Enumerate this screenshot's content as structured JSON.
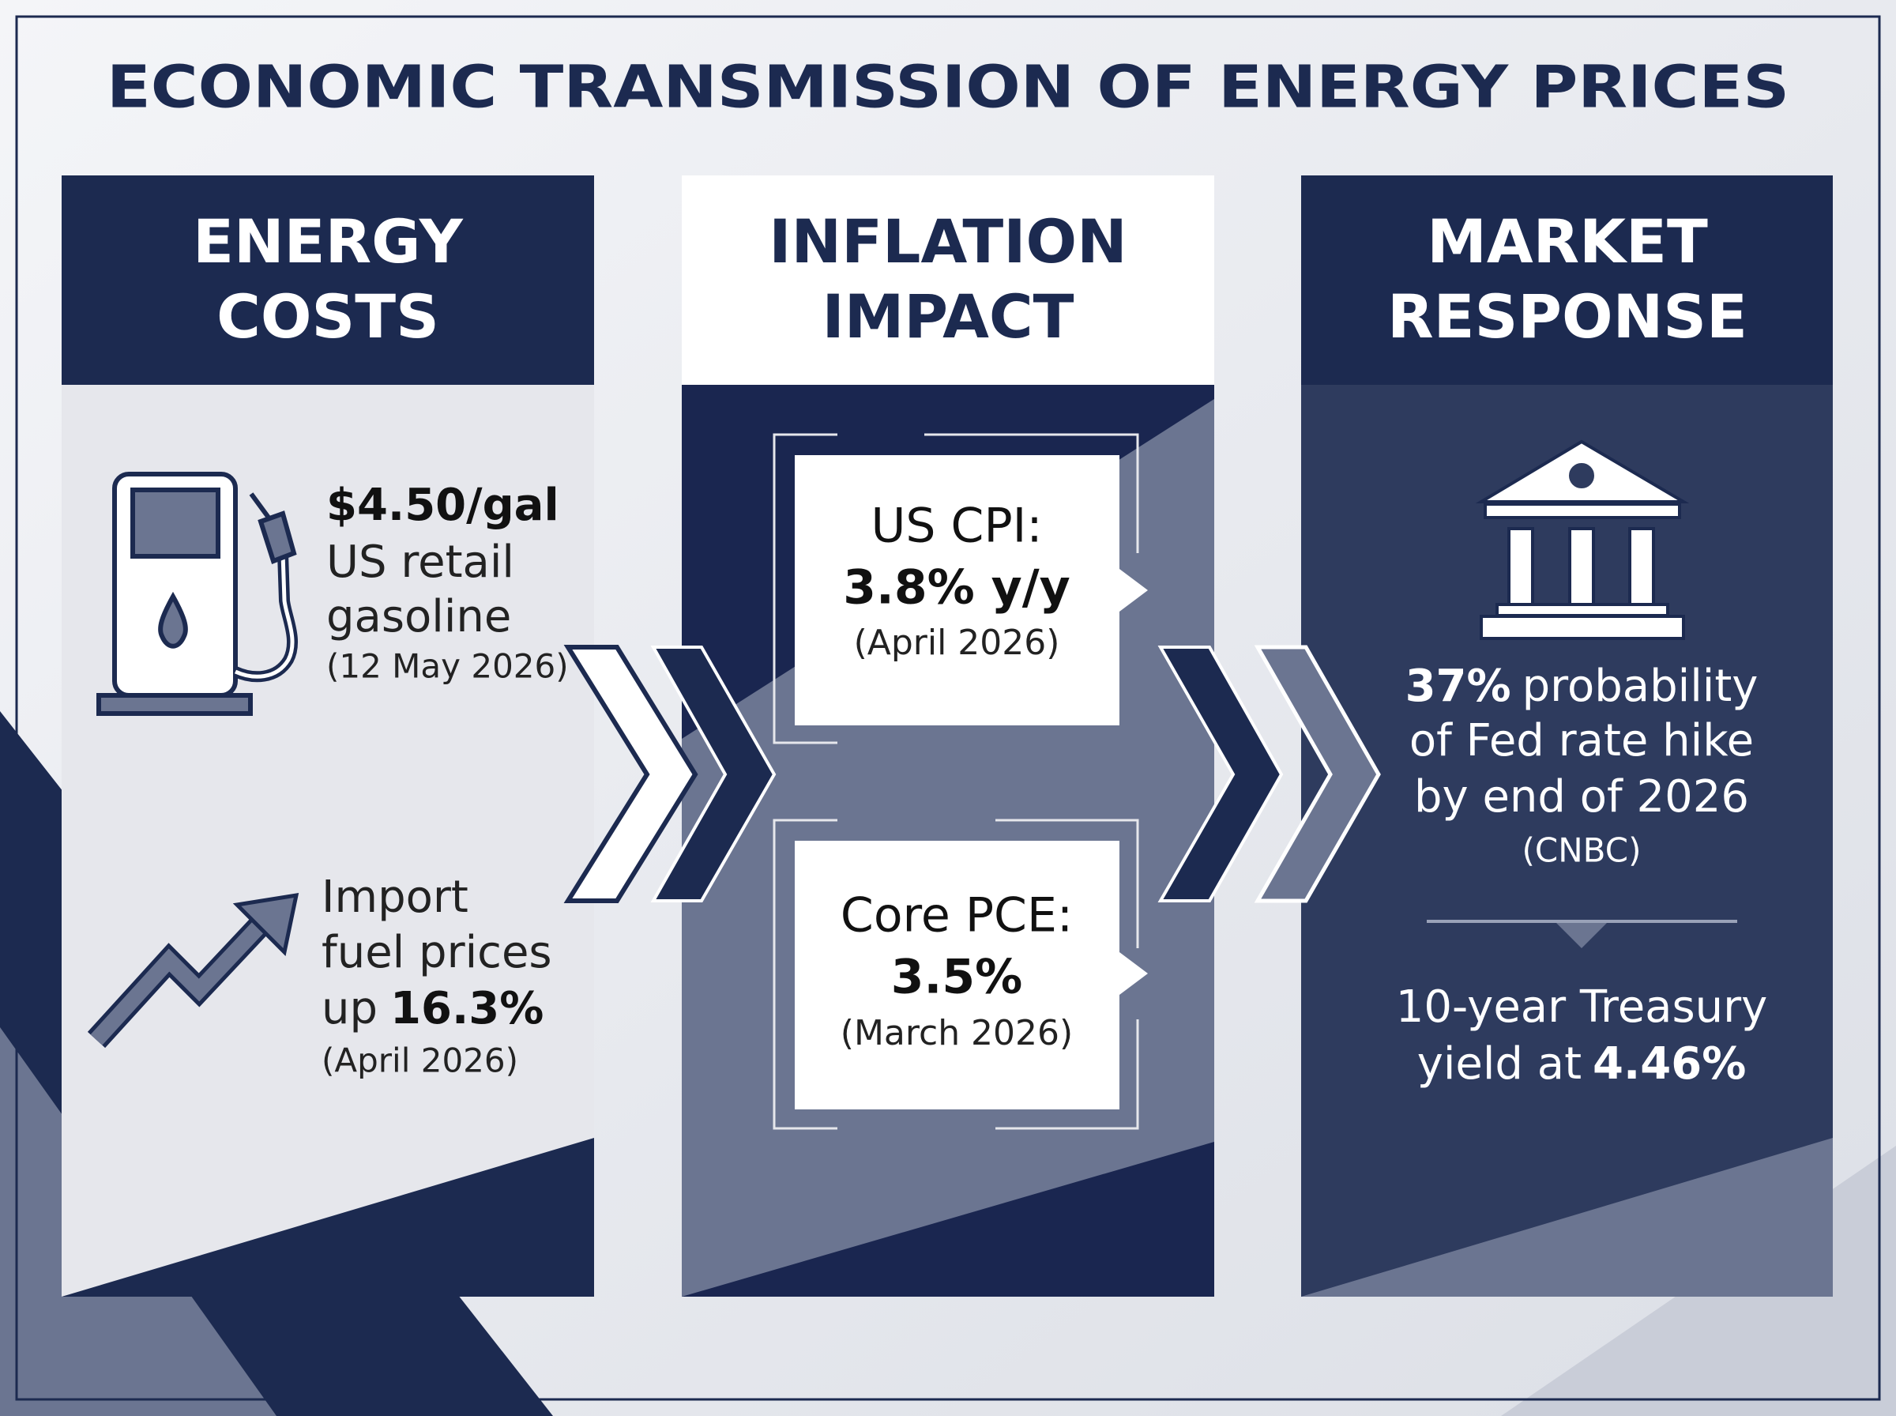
{
  "title": "ECONOMIC TRANSMISSION OF ENERGY PRICES",
  "energy_costs": {
    "heading": [
      "ENERGY",
      "COSTS"
    ],
    "gasoline": {
      "price": "$4.50/gal",
      "label": [
        "US retail",
        "gasoline"
      ],
      "date": "(12 May 2026)"
    },
    "import_fuel": {
      "label": [
        "Import",
        "fuel prices",
        "up"
      ],
      "change": "16.3%",
      "date": "(April 2026)"
    }
  },
  "inflation_impact": {
    "heading": [
      "INFLATION",
      "IMPACT"
    ],
    "cpi": {
      "label": "US CPI:",
      "value": "3.8% y/y",
      "date": "(April 2026)"
    },
    "core_pce": {
      "label": "Core PCE:",
      "value": "3.5%",
      "date": "(March 2026)"
    }
  },
  "market_response": {
    "heading": [
      "MARKET",
      "RESPONSE"
    ],
    "rate_hike": {
      "value": "37%",
      "text": [
        "probability",
        "of Fed rate hike",
        "by end of 2026"
      ],
      "source": "(CNBC)"
    },
    "treasury": {
      "text": [
        "10-year Treasury",
        "yield at"
      ],
      "value": "4.46%"
    }
  }
}
